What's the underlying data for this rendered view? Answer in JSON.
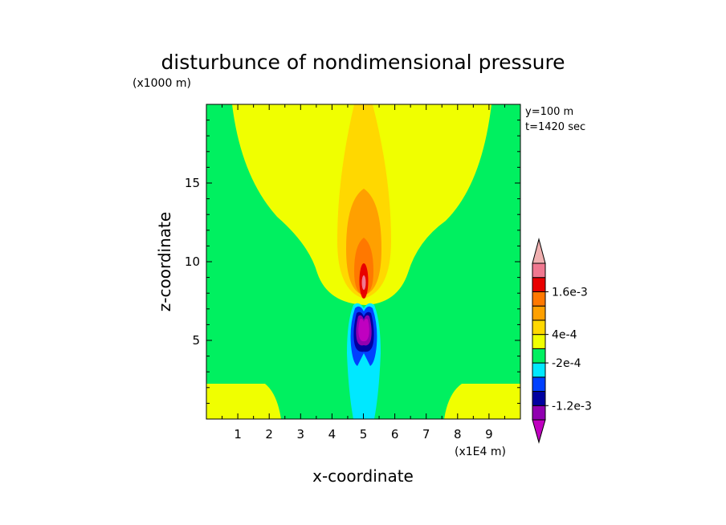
{
  "chart_data": {
    "type": "heatmap",
    "title": "disturbunce of nondimensional pressure",
    "xlabel": "x-coordinate",
    "ylabel": "z-coordinate",
    "x_unit": "(x1E4 m)",
    "y_unit": "(x1000 m)",
    "xlim": [
      0,
      10
    ],
    "ylim": [
      0,
      20
    ],
    "x_ticks": [
      "1",
      "2",
      "3",
      "4",
      "5",
      "6",
      "7",
      "8",
      "9"
    ],
    "y_ticks": [
      "5",
      "10",
      "15"
    ],
    "annotations": [
      "y=100 m",
      "t=1420 sec"
    ],
    "colorbar": {
      "labels": [
        "1.6e-3",
        "4e-4",
        "-2e-4",
        "-1.2e-3"
      ],
      "colors": [
        "#c000c0",
        "#9000b0",
        "#0000a0",
        "#0040ff",
        "#00e8ff",
        "#00f060",
        "#f0ff00",
        "#ffd800",
        "#ffa000",
        "#ff7800",
        "#e80000",
        "#f07890",
        "#f0b0b0"
      ]
    },
    "level_colors": {
      "neg5": "#c000c0",
      "neg4": "#9000b0",
      "neg3": "#0000a0",
      "neg2": "#0040ff",
      "neg1": "#00e8ff",
      "zero": "#00f060",
      "pos1": "#f0ff00",
      "pos2": "#ffd800",
      "pos3": "#ffa000",
      "pos4": "#ff7800",
      "pos5": "#e80000",
      "pos6": "#f07890"
    }
  }
}
